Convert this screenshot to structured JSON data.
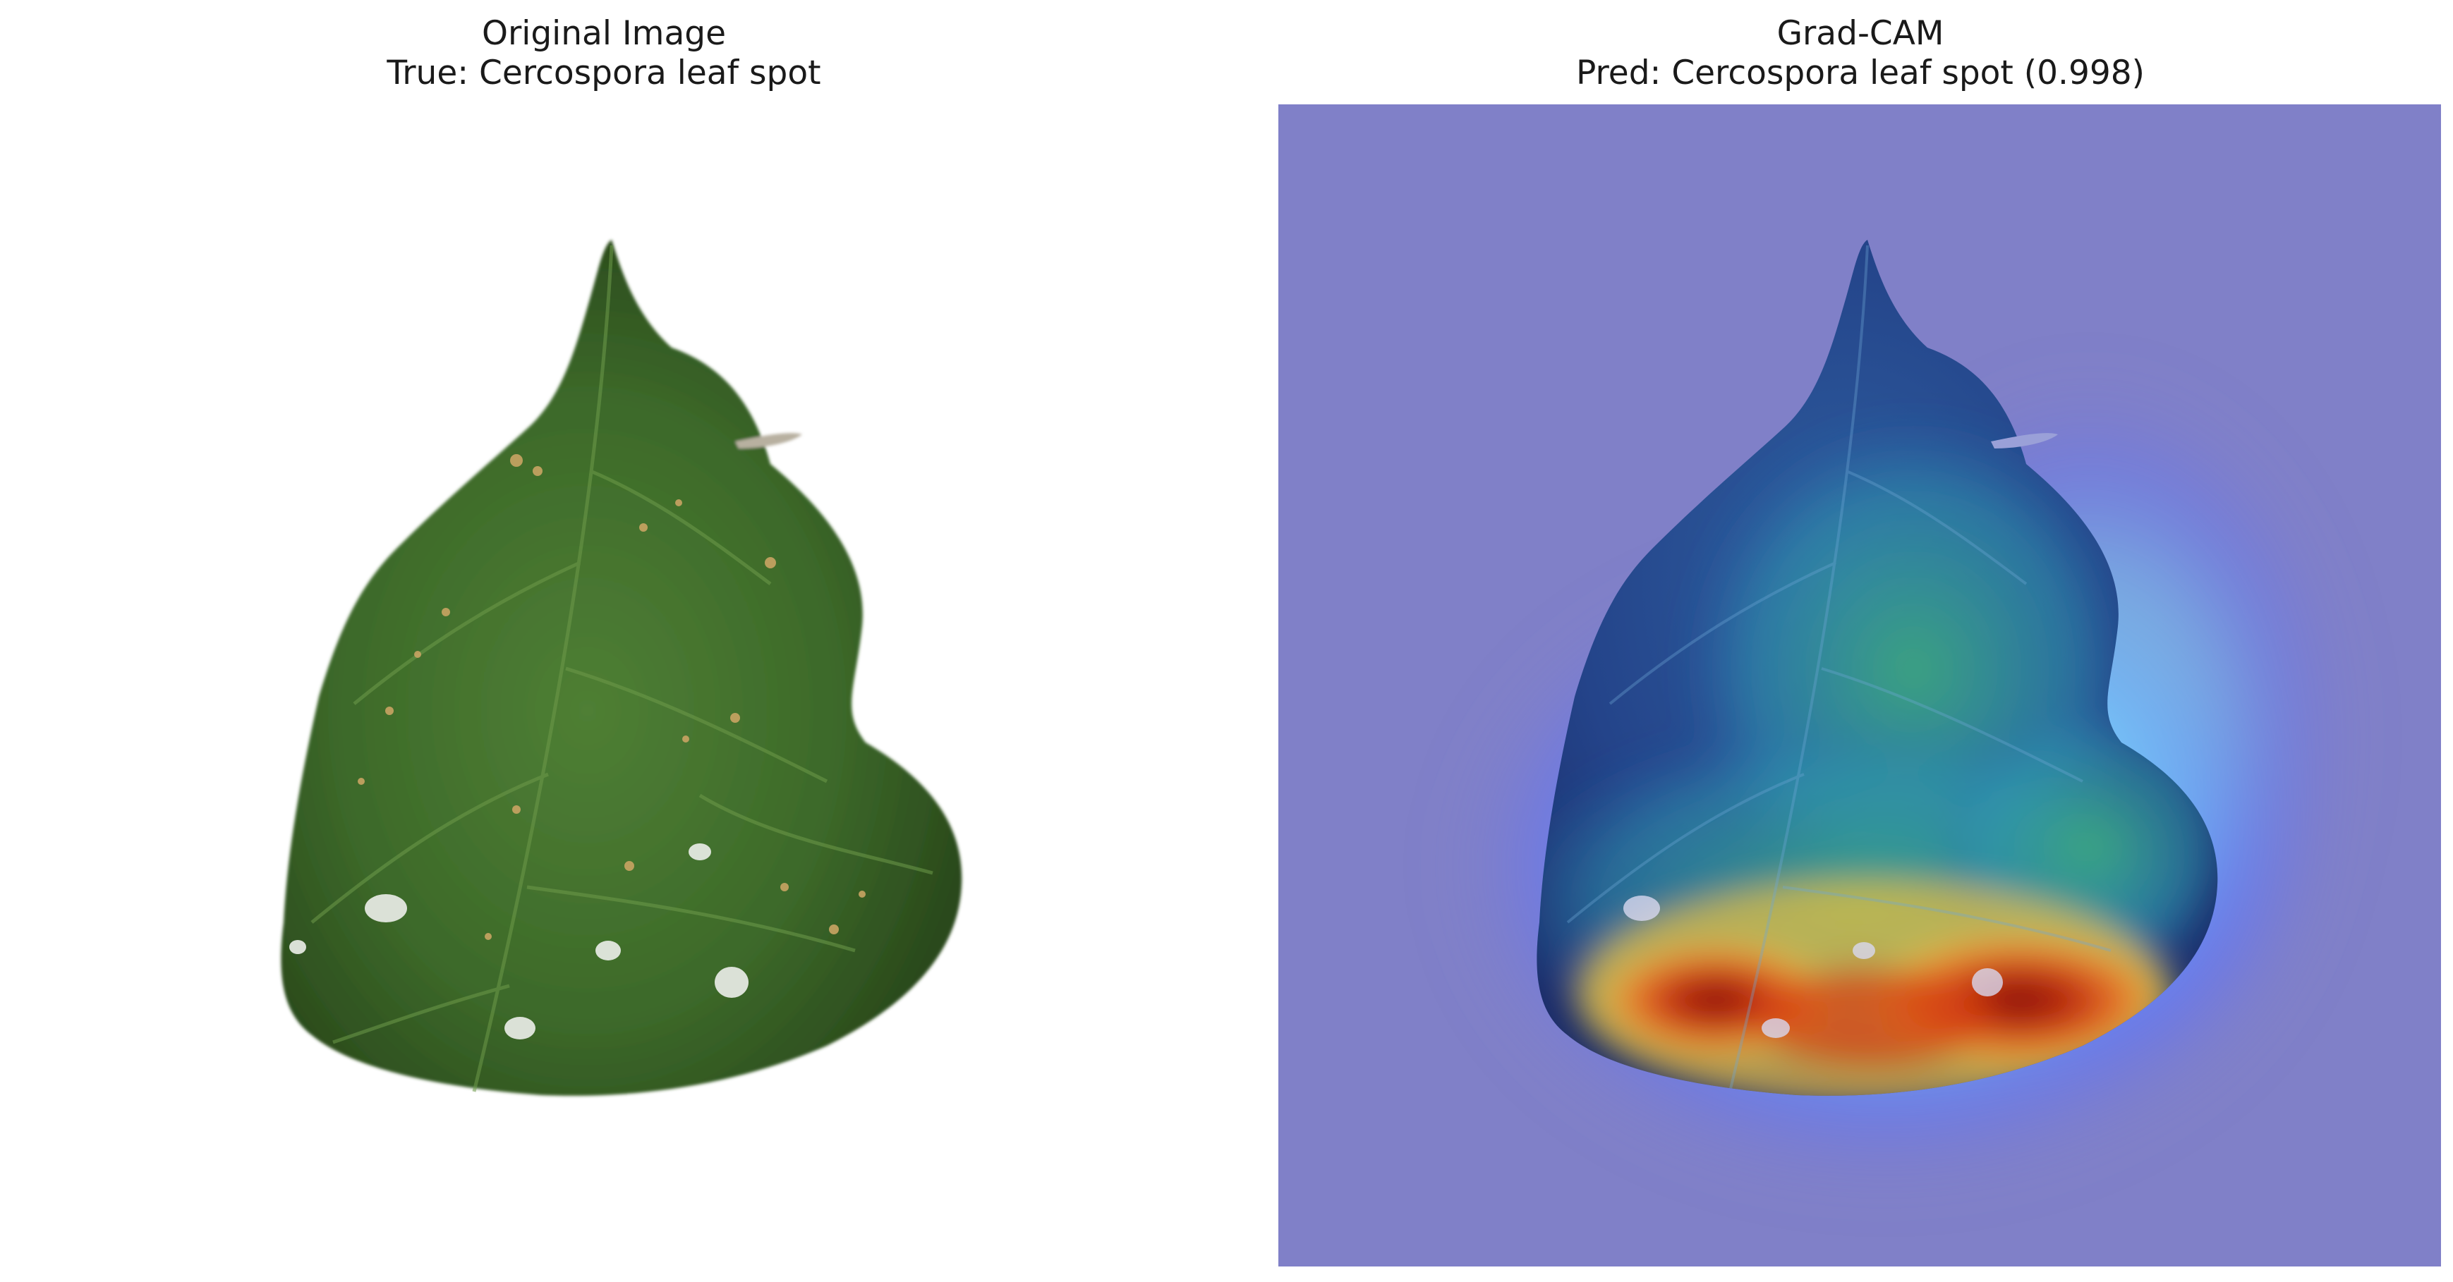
{
  "panels": {
    "left": {
      "title": "Original Image",
      "subtitle": "True: Cercospora leaf spot",
      "image_subject": "leaf-photo"
    },
    "right": {
      "title": "Grad-CAM",
      "subtitle": "Pred: Cercospora leaf spot (0.998)",
      "image_subject": "grad-cam-heatmap-overlay"
    }
  },
  "colors": {
    "leaf_dark": "#2a4a1c",
    "leaf_mid": "#3d6a2a",
    "leaf_light": "#5b8a3c",
    "spot": "#c9a463",
    "overlay_background": "#8080c8",
    "heat_hot": "#b81f0b",
    "heat_warm": "#f0c040",
    "heat_cool": "#7ff0ff"
  }
}
